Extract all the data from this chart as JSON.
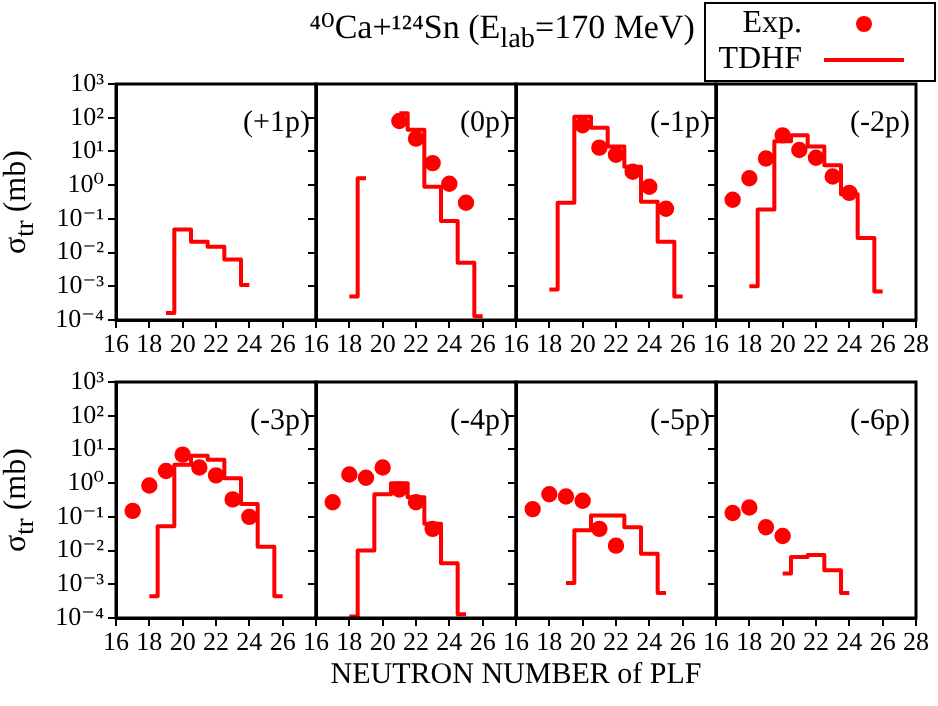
{
  "chart_data": [
    {
      "type": "step",
      "ylabel": "σ$_{tr}$ (mb)",
      "annotations": [
        "(+1p)"
      ],
      "log": true,
      "xlim": [
        16,
        28
      ],
      "xticks": [
        16,
        18,
        20,
        22,
        24,
        26
      ],
      "ylim": [
        0.0001,
        1000
      ],
      "yticks": [
        {
          "value": 0.0001,
          "label": "10⁻⁴"
        },
        {
          "value": 0.001,
          "label": "10⁻³"
        },
        {
          "value": 0.01,
          "label": "10⁻²"
        },
        {
          "value": 0.1,
          "label": "10⁻¹"
        },
        {
          "value": 1,
          "label": "10⁰"
        },
        {
          "value": 10,
          "label": "10¹"
        },
        {
          "value": 100,
          "label": "10²"
        },
        {
          "value": 1000,
          "label": "10³"
        }
      ],
      "grid": false,
      "series": [
        {
          "type": "step",
          "color": "#ff0000",
          "x": [
            19,
            20,
            21,
            22,
            23,
            24
          ],
          "values": [
            0.00016,
            0.048,
            0.021,
            0.015,
            0.0062,
            0.0011
          ]
        }
      ]
    },
    {
      "type": "step",
      "title": "⁴⁰Ca+¹²⁴Sn (E$_{lab}$=170 MeV)",
      "annotations": [
        "(0p)"
      ],
      "log": true,
      "tick_labels": "x",
      "xlim": [
        16,
        28
      ],
      "xticks": [
        16,
        18,
        20,
        22,
        24,
        26
      ],
      "ylim": [
        0.0001,
        1000
      ],
      "yticks": [
        0.0001,
        0.001,
        0.01,
        0.1,
        1,
        10,
        100,
        1000
      ],
      "grid": false,
      "series": [
        {
          "type": "scatter",
          "color": "#ff0000",
          "marker": "circle",
          "x": [
            21,
            22,
            23,
            24,
            25
          ],
          "values": [
            80,
            24,
            4.5,
            1.1,
            0.3
          ]
        },
        {
          "type": "step",
          "color": "#ff0000",
          "x": [
            18,
            19,
            20,
            21,
            22,
            23,
            24,
            25,
            26
          ],
          "values": [
            0.0005,
            1.6,
            null,
            135,
            44,
            0.9,
            0.087,
            0.005,
            0.00013
          ]
        }
      ]
    },
    {
      "type": "step",
      "annotations": [
        "(-1p)"
      ],
      "log": true,
      "tick_labels": "x",
      "xlim": [
        16,
        28
      ],
      "xticks": [
        16,
        18,
        20,
        22,
        24,
        26
      ],
      "ylim": [
        0.0001,
        1000
      ],
      "yticks": [
        0.0001,
        0.001,
        0.01,
        0.1,
        1,
        10,
        100,
        1000
      ],
      "grid": false,
      "series": [
        {
          "type": "scatter",
          "color": "#ff0000",
          "marker": "circle",
          "x": [
            20,
            21,
            22,
            23,
            24,
            25
          ],
          "values": [
            60,
            13,
            8,
            2.5,
            0.9,
            0.2
          ]
        },
        {
          "type": "step",
          "color": "#ff0000",
          "x": [
            18,
            19,
            20,
            21,
            22,
            23,
            24,
            25,
            26
          ],
          "values": [
            0.0008,
            0.3,
            107,
            50,
            14,
            3.5,
            0.32,
            0.021,
            0.0005
          ]
        }
      ]
    },
    {
      "type": "step",
      "annotations": [
        "(-2p)"
      ],
      "log": true,
      "tick_labels": "x",
      "legend": "top right",
      "xlim": [
        16,
        28
      ],
      "xticks": [
        16,
        18,
        20,
        22,
        24,
        26,
        28
      ],
      "ylim": [
        0.0001,
        1000
      ],
      "yticks": [
        0.0001,
        0.001,
        0.01,
        0.1,
        1,
        10,
        100,
        1000
      ],
      "grid": false,
      "series": [
        {
          "name": "Exp.",
          "type": "scatter",
          "color": "#ff0000",
          "marker": "circle",
          "x": [
            17,
            18,
            19,
            20,
            21,
            22,
            23,
            24
          ],
          "values": [
            0.37,
            1.6,
            6.2,
            30,
            11,
            6.5,
            1.8,
            0.59
          ]
        },
        {
          "name": "TDHF",
          "type": "step",
          "color": "#ff0000",
          "x": [
            18,
            19,
            20,
            21,
            22,
            23,
            24,
            25,
            26
          ],
          "values": [
            0.001,
            0.19,
            20,
            30,
            14,
            3.9,
            0.54,
            0.027,
            0.0007
          ]
        }
      ]
    },
    {
      "type": "step",
      "ylabel": "σ$_{tr}$ (mb)",
      "annotations": [
        "(-3p)"
      ],
      "log": true,
      "xlim": [
        16,
        28
      ],
      "xticks": [
        16,
        18,
        20,
        22,
        24,
        26
      ],
      "ylim": [
        0.0001,
        1000
      ],
      "yticks": [
        {
          "value": 0.0001,
          "label": "10⁻⁴"
        },
        {
          "value": 0.001,
          "label": "10⁻³"
        },
        {
          "value": 0.01,
          "label": "10⁻²"
        },
        {
          "value": 0.1,
          "label": "10⁻¹"
        },
        {
          "value": 1,
          "label": "10⁰"
        },
        {
          "value": 10,
          "label": "10¹"
        },
        {
          "value": 100,
          "label": "10²"
        },
        {
          "value": 1000,
          "label": "10³"
        }
      ],
      "grid": false,
      "series": [
        {
          "type": "scatter",
          "color": "#ff0000",
          "marker": "circle",
          "x": [
            17,
            18,
            19,
            20,
            21,
            22,
            23,
            24
          ],
          "values": [
            0.15,
            0.85,
            2.3,
            7,
            2.9,
            1.7,
            0.33,
            0.1
          ]
        },
        {
          "type": "step",
          "color": "#ff0000",
          "x": [
            18,
            19,
            20,
            21,
            22,
            23,
            24,
            25,
            26
          ],
          "values": [
            0.00044,
            0.053,
            3.5,
            6.5,
            4.9,
            1.4,
            0.24,
            0.013,
            0.00044
          ]
        }
      ]
    },
    {
      "type": "step",
      "xlabel": "NEUTRON NUMBER of PLF",
      "annotations": [
        "(-4p)"
      ],
      "log": true,
      "tick_labels": "x",
      "xlim": [
        16,
        28
      ],
      "xticks": [
        16,
        18,
        20,
        22,
        24,
        26
      ],
      "ylim": [
        0.0001,
        1000
      ],
      "yticks": [
        0.0001,
        0.001,
        0.01,
        0.1,
        1,
        10,
        100,
        1000
      ],
      "grid": false,
      "series": [
        {
          "type": "scatter",
          "color": "#ff0000",
          "marker": "circle",
          "x": [
            17,
            18,
            19,
            20,
            21,
            22,
            23
          ],
          "values": [
            0.27,
            1.8,
            1.45,
            2.9,
            0.65,
            0.27,
            0.044
          ]
        },
        {
          "type": "step",
          "color": "#ff0000",
          "x": [
            18,
            19,
            20,
            21,
            22,
            23,
            24,
            25
          ],
          "values": [
            0.00011,
            0.01,
            0.47,
            1.0,
            0.38,
            0.062,
            0.0042,
            0.00013
          ]
        }
      ]
    },
    {
      "type": "step",
      "annotations": [
        "(-5p)"
      ],
      "log": true,
      "tick_labels": "x",
      "xlim": [
        16,
        28
      ],
      "xticks": [
        16,
        18,
        20,
        22,
        24,
        26
      ],
      "ylim": [
        0.0001,
        1000
      ],
      "yticks": [
        0.0001,
        0.001,
        0.01,
        0.1,
        1,
        10,
        100,
        1000
      ],
      "grid": false,
      "series": [
        {
          "type": "scatter",
          "color": "#ff0000",
          "marker": "circle",
          "x": [
            17,
            18,
            19,
            20,
            21,
            22
          ],
          "values": [
            0.17,
            0.47,
            0.4,
            0.3,
            0.044,
            0.014
          ]
        },
        {
          "type": "step",
          "color": "#ff0000",
          "x": [
            19,
            20,
            21,
            22,
            23,
            24,
            25
          ],
          "values": [
            0.0011,
            0.04,
            0.11,
            0.11,
            0.049,
            0.0081,
            0.00055
          ]
        }
      ]
    },
    {
      "type": "step",
      "annotations": [
        "(-6p)"
      ],
      "log": true,
      "tick_labels": "x",
      "xlim": [
        16,
        28
      ],
      "xticks": [
        16,
        18,
        20,
        22,
        24,
        26,
        28
      ],
      "ylim": [
        0.0001,
        1000
      ],
      "yticks": [
        0.0001,
        0.001,
        0.01,
        0.1,
        1,
        10,
        100,
        1000
      ],
      "grid": false,
      "series": [
        {
          "type": "scatter",
          "color": "#ff0000",
          "marker": "circle",
          "x": [
            17,
            18,
            19,
            20
          ],
          "values": [
            0.13,
            0.19,
            0.049,
            0.027
          ]
        },
        {
          "type": "step",
          "color": "#ff0000",
          "x": [
            20,
            21,
            22,
            23,
            24
          ],
          "values": [
            0.0021,
            0.0064,
            0.0074,
            0.0026,
            0.00055
          ]
        }
      ]
    }
  ]
}
